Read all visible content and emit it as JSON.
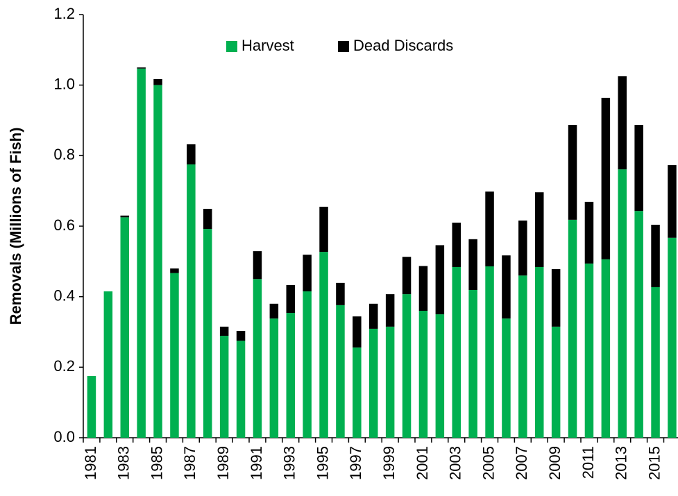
{
  "chart_data": {
    "type": "stacked_bar",
    "y_label": "Removals (Millions of Fish)",
    "categories": [
      "1981",
      null,
      "1983",
      null,
      "1985",
      null,
      "1987",
      null,
      "1989",
      null,
      "1991",
      null,
      "1993",
      null,
      "1995",
      null,
      "1997",
      null,
      "1999",
      null,
      "2001",
      null,
      "2003",
      null,
      "2005",
      null,
      "2007",
      null,
      "2009",
      null,
      "2011",
      null,
      "2013",
      null,
      "2015",
      null
    ],
    "series": [
      {
        "name": "Harvest",
        "color": "#00b050",
        "values": [
          0.175,
          0.415,
          0.625,
          1.047,
          1.0,
          0.467,
          0.775,
          0.592,
          0.289,
          0.275,
          0.45,
          0.338,
          0.354,
          0.415,
          0.527,
          0.376,
          0.256,
          0.309,
          0.315,
          0.407,
          0.36,
          0.35,
          0.484,
          0.419,
          0.486,
          0.338,
          0.46,
          0.484,
          0.315,
          0.618,
          0.494,
          0.506,
          0.761,
          0.643,
          0.427,
          0.567
        ]
      },
      {
        "name": "Dead Discards",
        "color": "#000000",
        "values": [
          0,
          0,
          0.005,
          0.003,
          0.017,
          0.013,
          0.057,
          0.057,
          0.026,
          0.028,
          0.079,
          0.042,
          0.079,
          0.104,
          0.128,
          0.063,
          0.088,
          0.071,
          0.092,
          0.106,
          0.127,
          0.196,
          0.126,
          0.144,
          0.212,
          0.179,
          0.156,
          0.212,
          0.163,
          0.269,
          0.175,
          0.458,
          0.264,
          0.244,
          0.177,
          0.206
        ]
      }
    ],
    "ylim": [
      0,
      1.2
    ],
    "yticks": [
      {
        "value": 0,
        "label": "0.0"
      },
      0.2,
      0.4,
      0.6,
      0.8,
      {
        "value": 1,
        "label": "1.0"
      },
      1.2
    ],
    "grid": false,
    "legend": "top"
  }
}
